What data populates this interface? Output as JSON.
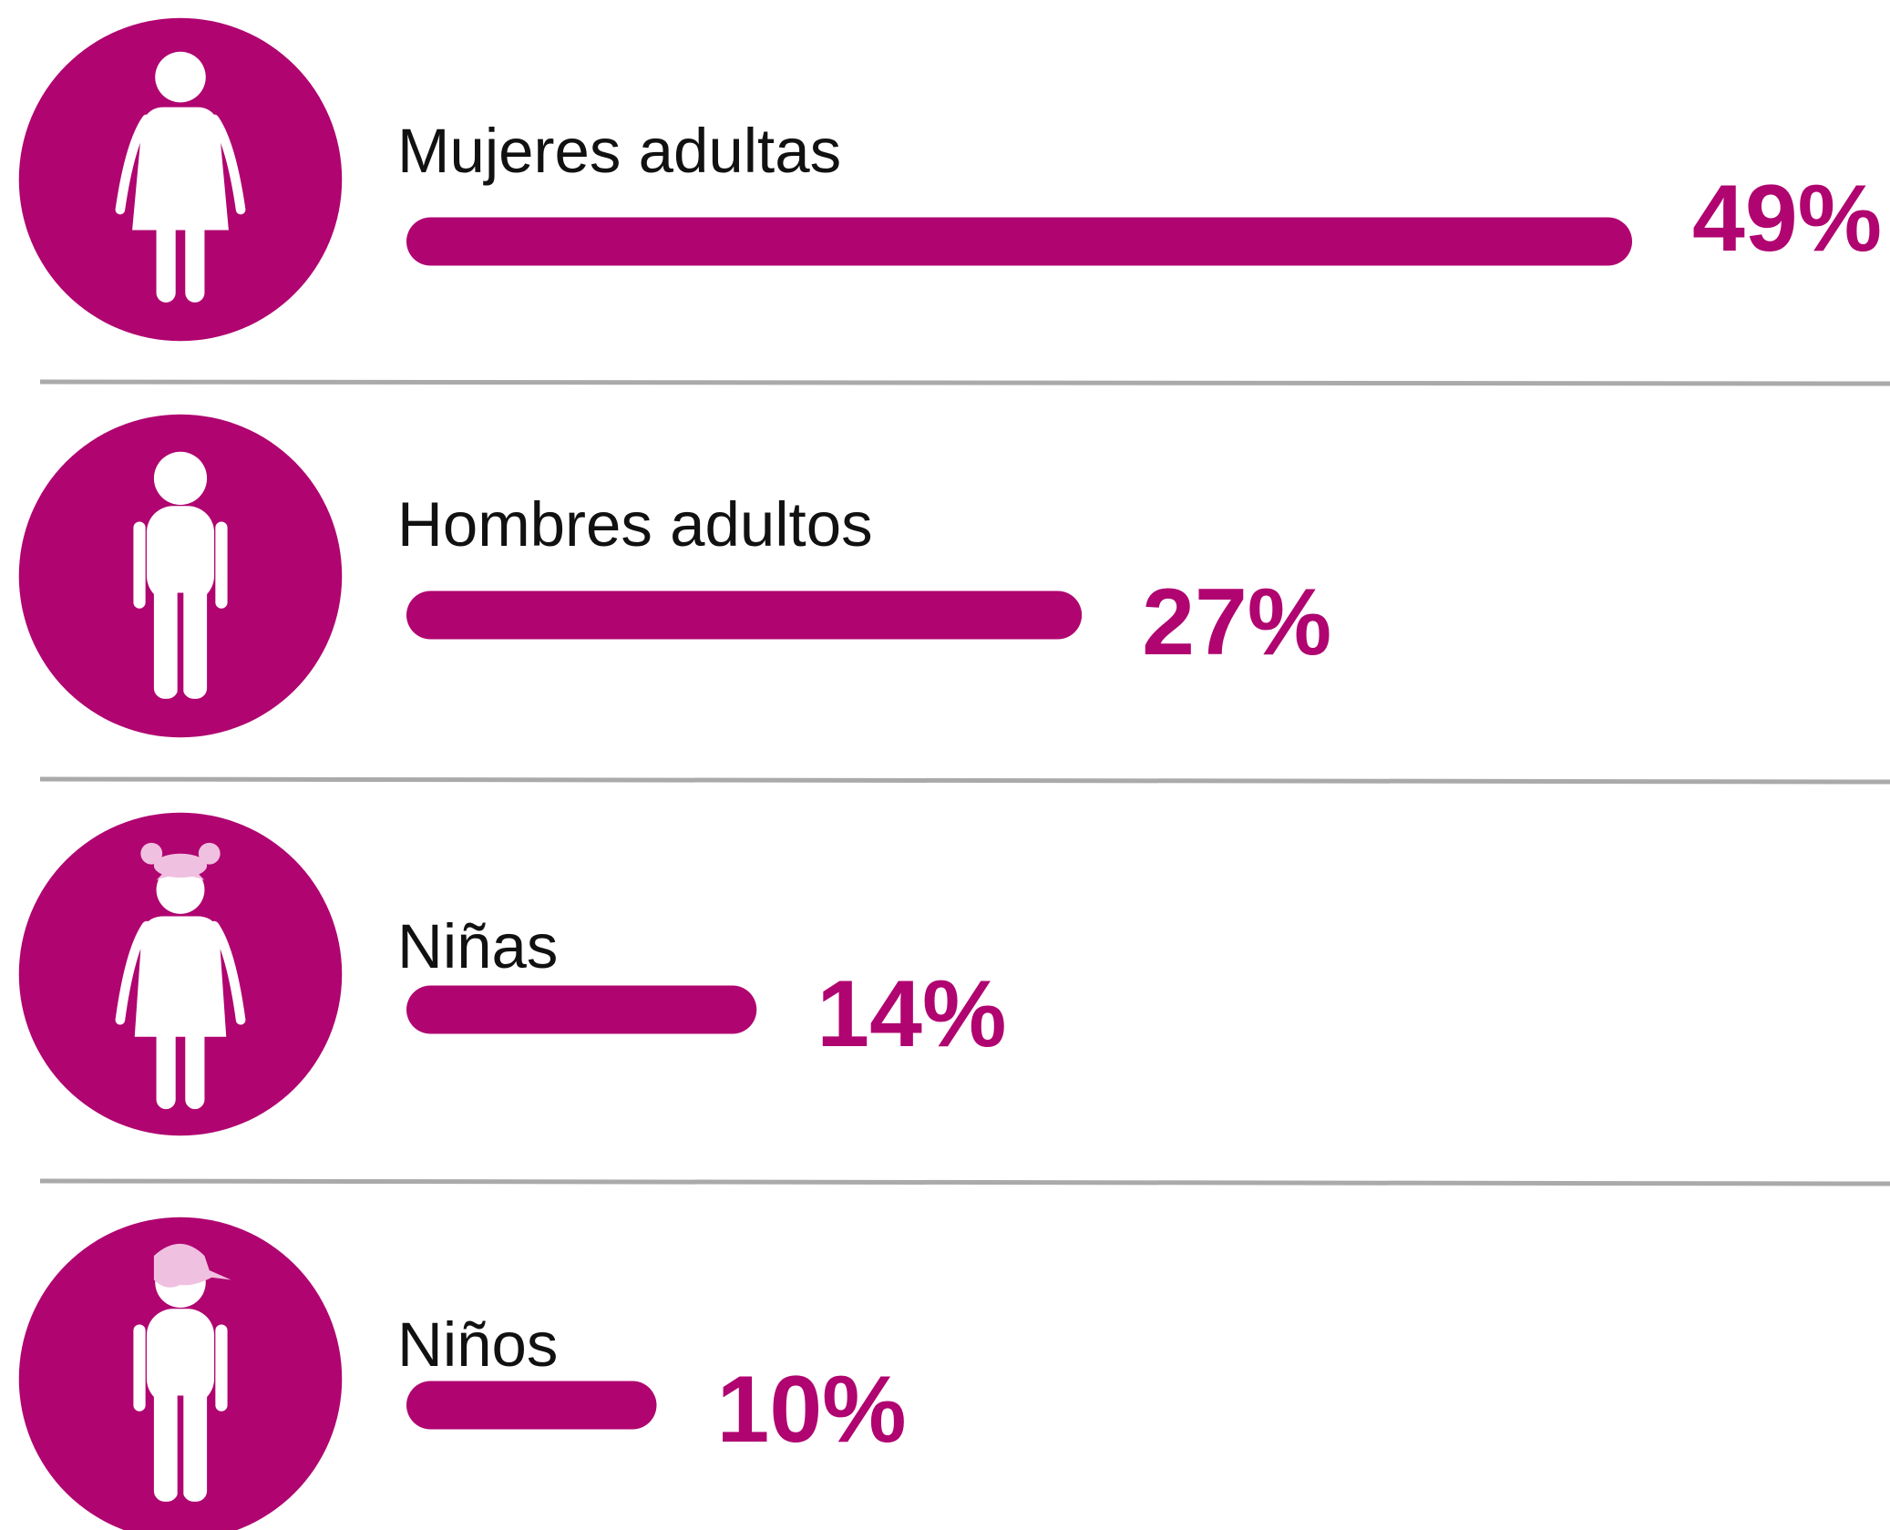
{
  "chart_data": {
    "type": "bar",
    "orientation": "horizontal",
    "categories": [
      "Mujeres adultas",
      "Hombres adultos",
      "Niñas",
      "Niños"
    ],
    "values": [
      49,
      27,
      14,
      10
    ],
    "value_labels": [
      "49%",
      "27%",
      "14%",
      "10%"
    ],
    "color": "#b00470"
  }
}
